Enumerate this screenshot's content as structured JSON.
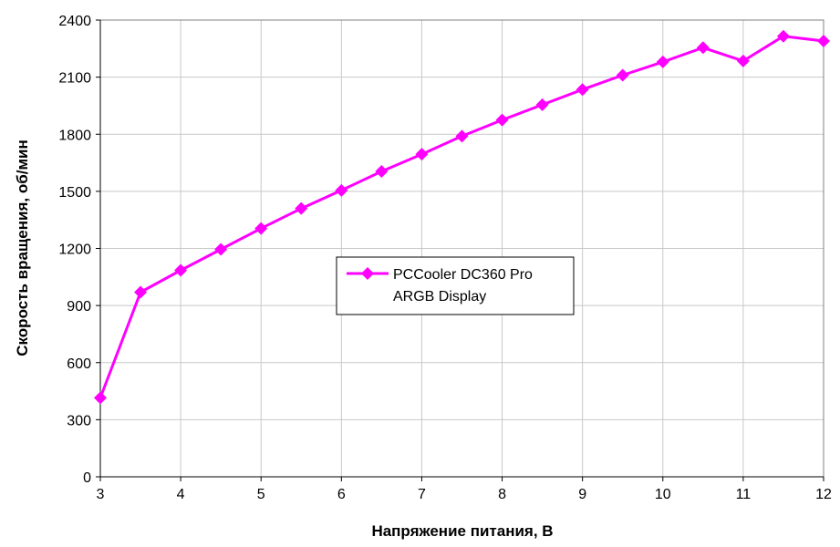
{
  "chart_data": {
    "type": "line",
    "xlabel": "Напряжение питания, В",
    "ylabel": "Скорость вращения, об/мин",
    "xlim": [
      3,
      12
    ],
    "ylim": [
      0,
      2400
    ],
    "x_ticks": [
      3,
      4,
      5,
      6,
      7,
      8,
      9,
      10,
      11,
      12
    ],
    "y_ticks": [
      0,
      300,
      600,
      900,
      1200,
      1500,
      1800,
      2100,
      2400
    ],
    "grid": true,
    "legend_position": "center",
    "series": [
      {
        "name": "PCCooler DC360 Pro ARGB Display",
        "legend_lines": [
          "PCCooler DC360 Pro",
          "ARGB Display"
        ],
        "color": "#ff00ff",
        "marker": "diamond",
        "x": [
          3,
          3.5,
          4,
          4.5,
          5,
          5.5,
          6,
          6.5,
          7,
          7.5,
          8,
          8.5,
          9,
          9.5,
          10,
          10.5,
          11,
          11.5,
          12
        ],
        "y": [
          415,
          970,
          1085,
          1195,
          1305,
          1410,
          1505,
          1605,
          1695,
          1790,
          1875,
          1955,
          2035,
          2110,
          2180,
          2255,
          2185,
          2315,
          2290
        ]
      }
    ]
  }
}
